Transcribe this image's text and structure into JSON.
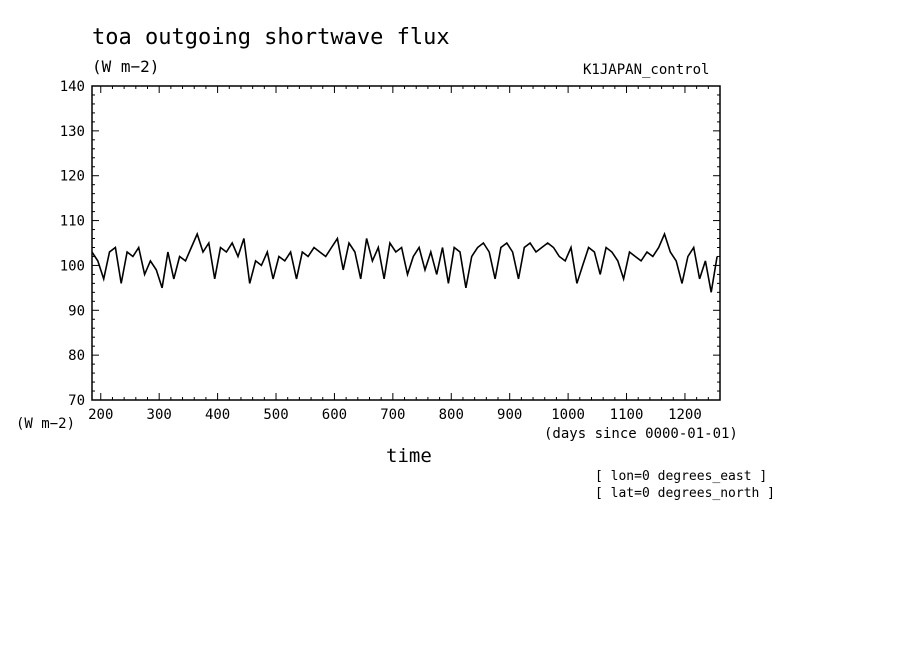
{
  "chart_data": {
    "type": "line",
    "title": "toa outgoing shortwave flux",
    "units": "(W m−2)",
    "run_label": "K1JAPAN_control",
    "ylabel_units": "(W m−2)",
    "xlabel": "time",
    "xlabel_units": "(days since 0000-01-01)",
    "coords": [
      "[ lon=0 degrees_east ]",
      "[ lat=0 degrees_north ]"
    ],
    "xlim": [
      185,
      1260
    ],
    "ylim": [
      70,
      140
    ],
    "x_ticks": [
      200,
      300,
      400,
      500,
      600,
      700,
      800,
      900,
      1000,
      1100,
      1200
    ],
    "y_ticks": [
      70,
      80,
      90,
      100,
      110,
      120,
      130,
      140
    ],
    "x_tick_labels": [
      "200",
      "300",
      "400",
      "500",
      "600",
      "700",
      "800",
      "900",
      "1000",
      "1100",
      "1200"
    ],
    "y_tick_labels": [
      "70",
      "80",
      "90",
      "100",
      "110",
      "120",
      "130",
      "140"
    ],
    "grid": false,
    "series": [
      {
        "color": "#000000",
        "x": [
          185,
          195,
          205,
          215,
          225,
          235,
          245,
          255,
          265,
          275,
          285,
          295,
          305,
          315,
          325,
          335,
          345,
          355,
          365,
          375,
          385,
          395,
          405,
          415,
          425,
          435,
          445,
          455,
          465,
          475,
          485,
          495,
          505,
          515,
          525,
          535,
          545,
          555,
          565,
          575,
          585,
          595,
          605,
          615,
          625,
          635,
          645,
          655,
          665,
          675,
          685,
          695,
          705,
          715,
          725,
          735,
          745,
          755,
          765,
          775,
          785,
          795,
          805,
          815,
          825,
          835,
          845,
          855,
          865,
          875,
          885,
          895,
          905,
          915,
          925,
          935,
          945,
          955,
          965,
          975,
          985,
          995,
          1005,
          1015,
          1025,
          1035,
          1045,
          1055,
          1065,
          1075,
          1085,
          1095,
          1105,
          1115,
          1125,
          1135,
          1145,
          1155,
          1165,
          1175,
          1185,
          1195,
          1205,
          1215,
          1225,
          1235,
          1245,
          1255
        ],
        "values": [
          103,
          101,
          97,
          103,
          104,
          96,
          103,
          102,
          104,
          98,
          101,
          99,
          95,
          103,
          97,
          102,
          101,
          104,
          107,
          103,
          105,
          97,
          104,
          103,
          105,
          102,
          106,
          96,
          101,
          100,
          103,
          97,
          102,
          101,
          103,
          97,
          103,
          102,
          104,
          103,
          102,
          104,
          106,
          99,
          105,
          103,
          97,
          106,
          101,
          104,
          97,
          105,
          103,
          104,
          98,
          102,
          104,
          99,
          103,
          98,
          104,
          96,
          104,
          103,
          95,
          102,
          104,
          105,
          103,
          97,
          104,
          105,
          103,
          97,
          104,
          105,
          103,
          104,
          105,
          104,
          102,
          101,
          104,
          96,
          100,
          104,
          103,
          98,
          104,
          103,
          101,
          97,
          103,
          102,
          101,
          103,
          102,
          104,
          107,
          103,
          101,
          96,
          102,
          104,
          97,
          101,
          94,
          102
        ]
      }
    ]
  }
}
